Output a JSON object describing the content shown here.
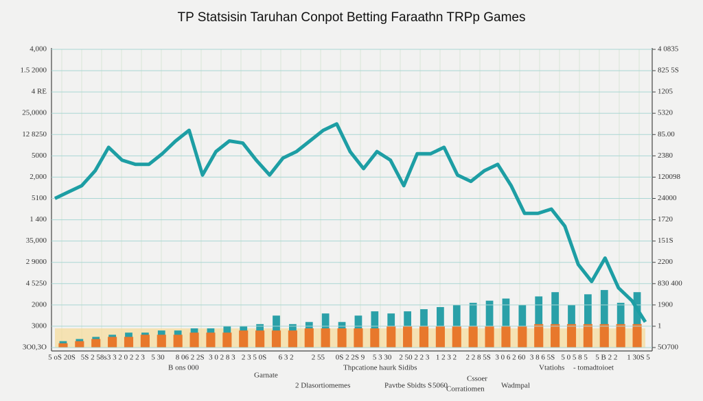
{
  "chart_data": [
    {
      "type": "line",
      "title": "TP Statsisin Taruhan Conpot Betting Faraathn TRPp Games",
      "categories": [
        null,
        null,
        null,
        null,
        null,
        null,
        null,
        null,
        null,
        null,
        null,
        null,
        null,
        null,
        null,
        null,
        null,
        null,
        null,
        null,
        null,
        null,
        null,
        null,
        null,
        null,
        null,
        null,
        null,
        null,
        null,
        null,
        null,
        null,
        null,
        null,
        null,
        null,
        null,
        null,
        null,
        null,
        null,
        null,
        null
      ],
      "series": [
        {
          "color": "#1d9ea4",
          "values": [
            7.0,
            7.3,
            7.6,
            8.3,
            9.4,
            8.8,
            8.6,
            8.6,
            9.1,
            9.7,
            10.2,
            8.1,
            9.2,
            9.7,
            9.6,
            8.8,
            8.1,
            8.9,
            9.2,
            9.7,
            10.2,
            10.5,
            9.2,
            8.4,
            9.2,
            8.8,
            7.6,
            9.1,
            9.1,
            9.4,
            8.1,
            7.8,
            8.3,
            8.6,
            7.6,
            6.3,
            6.3,
            6.5,
            5.7,
            3.9,
            3.1,
            4.2,
            2.8,
            2.2,
            1.2
          ]
        }
      ],
      "ylim": [
        0,
        14
      ],
      "yticks": [
        {
          "value": 0,
          "label": "3O0,3O"
        },
        {
          "value": 1,
          "label": "3000"
        },
        {
          "value": 2,
          "label": "2000"
        },
        {
          "value": 3,
          "label": "4 5250"
        },
        {
          "value": 4,
          "label": "2 9000"
        },
        {
          "value": 5,
          "label": "35,000"
        },
        {
          "value": 6,
          "label": "1 400"
        },
        {
          "value": 7,
          "label": "5100"
        },
        {
          "value": 8,
          "label": "2,000"
        },
        {
          "value": 9,
          "label": "5000"
        },
        {
          "value": 10,
          "label": "12 8250"
        },
        {
          "value": 11,
          "label": "25,0000"
        },
        {
          "value": 12,
          "label": "4 RE"
        },
        {
          "value": 13,
          "label": "1.5 2000"
        },
        {
          "value": 14,
          "label": "4,000"
        }
      ],
      "y2lim": [
        0,
        14
      ],
      "y2ticks": [
        {
          "value": 0,
          "label": "5O700"
        },
        {
          "value": 1,
          "label": "1"
        },
        {
          "value": 2,
          "label": "1900"
        },
        {
          "value": 3,
          "label": "830 400"
        },
        {
          "value": 4,
          "label": "2200"
        },
        {
          "value": 5,
          "label": "151S"
        },
        {
          "value": 6,
          "label": "1720"
        },
        {
          "value": 7,
          "label": "24000"
        },
        {
          "value": 8,
          "label": "120098"
        },
        {
          "value": 9,
          "label": "2380"
        },
        {
          "value": 10,
          "label": "85.00"
        },
        {
          "value": 11,
          "label": "5320"
        },
        {
          "value": 12,
          "label": "1205"
        },
        {
          "value": 13,
          "label": "825 5S"
        },
        {
          "value": 14,
          "label": "4 0835"
        }
      ],
      "x_labels": [
        "5 oS 20S",
        "5S 2 58s",
        "3 3 2 0 2 2 3",
        "5 30",
        "8 06 2 2S",
        "3 0 2 8 3",
        "2 3 5 0S",
        "6 3 2",
        "2 55",
        "0S 2 2S 9",
        "5 3 30",
        "2 50 2 2 3",
        "1 2 3 2",
        "2 2 8 5S",
        "3 0 6 2 60",
        "3 8 6 5S",
        "5 0 5 8 5",
        "5 B 2 2",
        "1 30S 5"
      ],
      "annotations": [
        "B ons 000",
        "Garnate",
        "2 Dlasortiomemes",
        "Thpcatione haurk Sidibs",
        "Pavtbe Sbidts S",
        "5060",
        "Cssoer",
        "Corratiomen",
        "Wadmpal",
        "Vtatiohs",
        "- tomadtoioet"
      ]
    },
    {
      "type": "bar",
      "categories": [
        null,
        null,
        null,
        null,
        null,
        null,
        null,
        null,
        null,
        null,
        null,
        null,
        null,
        null,
        null,
        null,
        null,
        null,
        null,
        null,
        null,
        null,
        null,
        null,
        null,
        null,
        null,
        null,
        null,
        null,
        null,
        null,
        null,
        null,
        null,
        null
      ],
      "series": [
        {
          "color": "#2aa0a8",
          "values": [
            0.3,
            0.4,
            0.5,
            0.6,
            0.7,
            0.7,
            0.8,
            0.8,
            0.9,
            0.9,
            1.0,
            1.0,
            1.1,
            1.5,
            1.1,
            1.2,
            1.6,
            1.2,
            1.5,
            1.7,
            1.6,
            1.7,
            1.8,
            1.9,
            2.0,
            2.1,
            2.2,
            2.3,
            2.0,
            2.4,
            2.6,
            2.0,
            2.5,
            2.7,
            2.1,
            2.6
          ]
        },
        {
          "color": "#e8782c",
          "values": [
            0.2,
            0.3,
            0.4,
            0.5,
            0.5,
            0.6,
            0.6,
            0.6,
            0.7,
            0.7,
            0.7,
            0.8,
            0.8,
            0.8,
            0.8,
            0.9,
            0.9,
            0.9,
            0.9,
            0.9,
            1.0,
            1.0,
            1.0,
            1.0,
            1.0,
            1.0,
            1.0,
            1.0,
            1.0,
            1.1,
            1.1,
            1.1,
            1.1,
            1.1,
            1.1,
            1.1
          ]
        }
      ],
      "ylim": [
        0,
        14
      ]
    }
  ]
}
